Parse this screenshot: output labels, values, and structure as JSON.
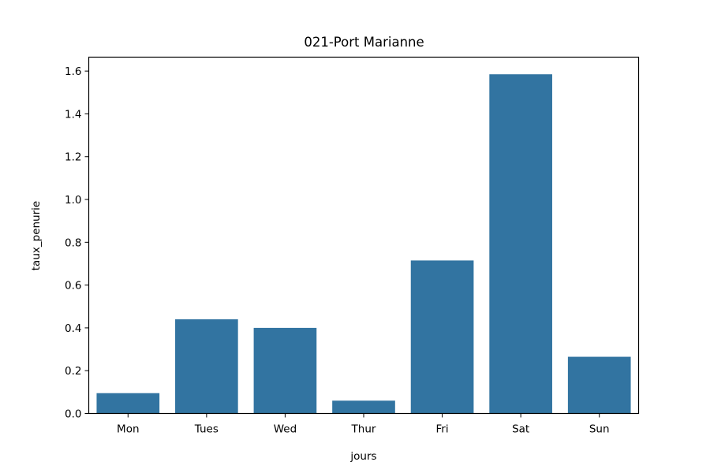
{
  "chart_data": {
    "type": "bar",
    "title": "021-Port Marianne",
    "xlabel": "jours",
    "ylabel": "taux_penurie",
    "categories": [
      "Mon",
      "Tues",
      "Wed",
      "Thur",
      "Fri",
      "Sat",
      "Sun"
    ],
    "values": [
      0.095,
      0.44,
      0.4,
      0.06,
      0.715,
      1.585,
      0.265
    ],
    "ylim": [
      0,
      1.665
    ],
    "yticks": [
      0.0,
      0.2,
      0.4,
      0.6,
      0.8,
      1.0,
      1.2,
      1.4,
      1.6
    ],
    "ytick_labels": [
      "0.0",
      "0.2",
      "0.4",
      "0.6",
      "0.8",
      "1.0",
      "1.2",
      "1.4",
      "1.6"
    ],
    "bar_color": "#3274a1",
    "grid": false,
    "legend": "none"
  }
}
